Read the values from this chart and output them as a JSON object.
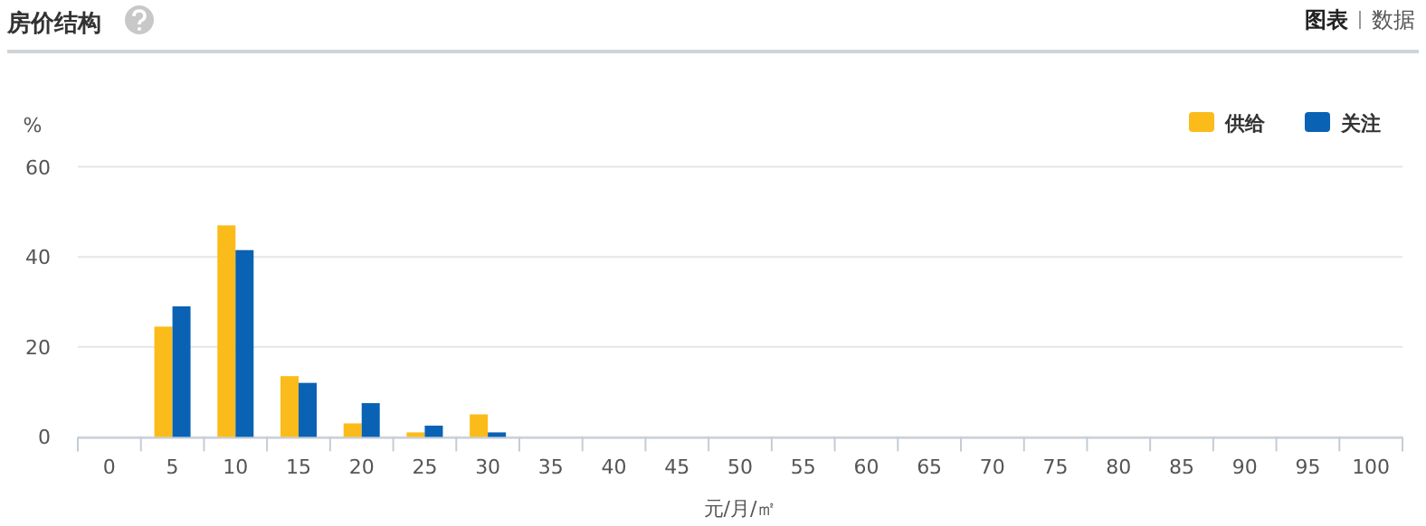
{
  "chart_data": {
    "type": "bar",
    "title": "房价结构",
    "xlabel": "元/月/㎡",
    "ylabel": "%",
    "categories": [
      "0",
      "5",
      "10",
      "15",
      "20",
      "25",
      "30",
      "35",
      "40",
      "45",
      "50",
      "55",
      "60",
      "65",
      "70",
      "75",
      "80",
      "85",
      "90",
      "95",
      "100"
    ],
    "series": [
      {
        "name": "供给",
        "color": "#fbbb1a",
        "values": [
          0,
          24.5,
          47,
          13.5,
          3,
          1,
          5,
          0,
          0,
          0,
          0,
          0,
          0,
          0,
          0,
          0,
          0,
          0,
          0,
          0,
          0
        ]
      },
      {
        "name": "关注",
        "color": "#0a62b4",
        "values": [
          0,
          29,
          41.5,
          12,
          7.5,
          2.5,
          1,
          0,
          0,
          0,
          0,
          0,
          0,
          0,
          0,
          0,
          0,
          0,
          0,
          0,
          0
        ]
      }
    ],
    "ylim": [
      0,
      60
    ],
    "yticks": [
      0,
      20,
      40,
      60
    ],
    "grid": "y",
    "legend": "top right",
    "annotations": [
      "图表",
      "数据"
    ]
  }
}
